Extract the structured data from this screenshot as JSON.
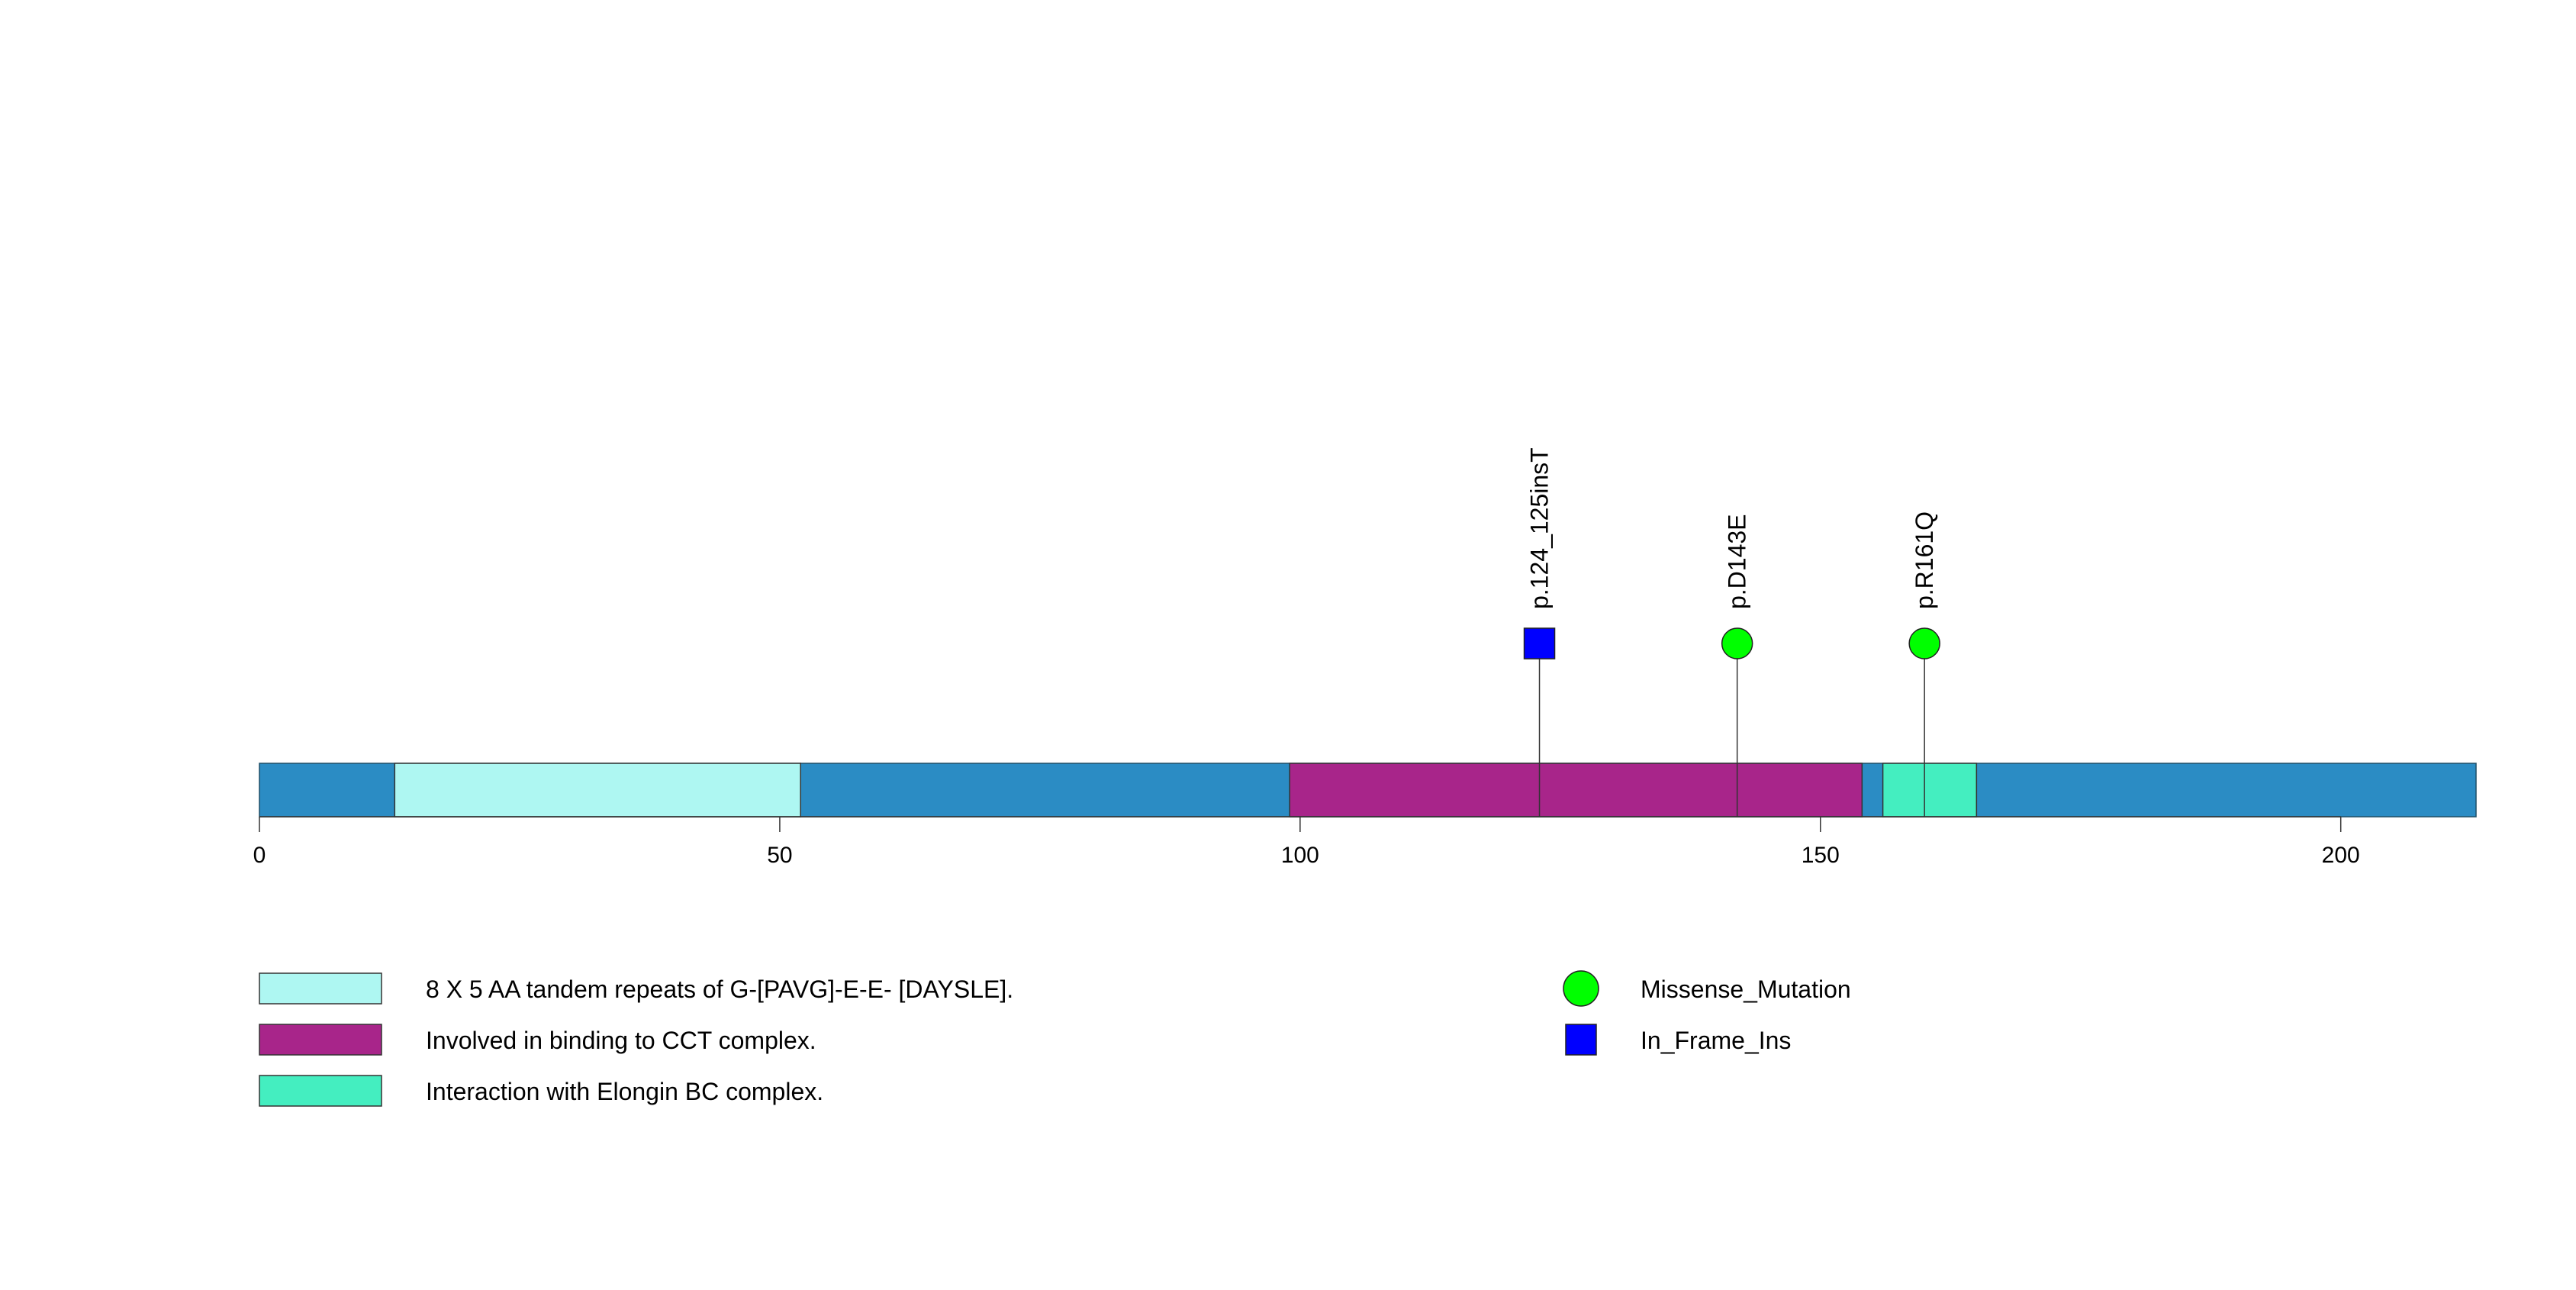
{
  "chart_data": {
    "type": "lollipop",
    "protein_length": 213,
    "xlim": [
      0,
      213
    ],
    "x_ticks": [
      0,
      50,
      100,
      150,
      200
    ],
    "backbone_color": "#2B8CC4",
    "domains": [
      {
        "name": "8 X 5 AA tandem repeats of G-[PAVG]-E-E- [DAYSLE].",
        "start": 13,
        "end": 52,
        "color": "#AEF7F2"
      },
      {
        "name": "Involved in binding to CCT complex.",
        "start": 99,
        "end": 154,
        "color": "#A8258A"
      },
      {
        "name": "Interaction with Elongin BC complex.",
        "start": 156,
        "end": 165,
        "color": "#44EEC0"
      }
    ],
    "mutations": [
      {
        "label": "p.124_125insT",
        "position": 123,
        "type": "In_Frame_Ins",
        "shape": "square",
        "color": "#0000FF"
      },
      {
        "label": "p.D143E",
        "position": 142,
        "type": "Missense_Mutation",
        "shape": "circle",
        "color": "#00FF00"
      },
      {
        "label": "p.R161Q",
        "position": 160,
        "type": "Missense_Mutation",
        "shape": "circle",
        "color": "#00FF00"
      }
    ],
    "mutation_legend": [
      {
        "label": "Missense_Mutation",
        "shape": "circle",
        "color": "#00FF00"
      },
      {
        "label": "In_Frame_Ins",
        "shape": "square",
        "color": "#0000FF"
      }
    ]
  }
}
